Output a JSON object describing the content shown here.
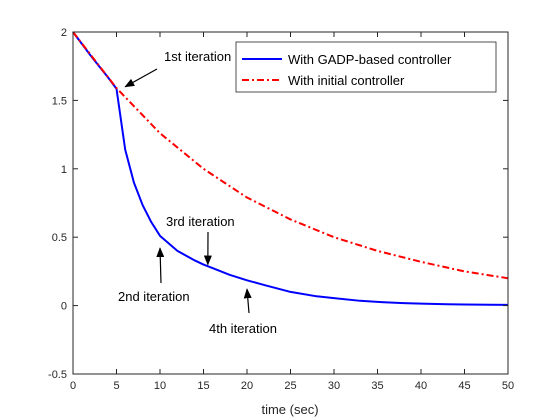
{
  "chart_data": {
    "type": "line",
    "title": "",
    "xlabel": "time (sec)",
    "ylabel": "",
    "xlim": [
      0,
      50
    ],
    "ylim": [
      -0.5,
      2
    ],
    "xticks": [
      0,
      5,
      10,
      15,
      20,
      25,
      30,
      35,
      40,
      45,
      50
    ],
    "yticks": [
      -0.5,
      0,
      0.5,
      1,
      1.5,
      2
    ],
    "ytick_labels": [
      "-0.5",
      "0",
      "0.5",
      "1",
      "1.5",
      "2"
    ],
    "grid": false,
    "legend_position": "top-right",
    "series": [
      {
        "name": "With GADP-based controller",
        "color": "#0000ff",
        "style": "solid",
        "x": [
          0,
          1,
          2,
          3,
          4,
          5,
          6,
          7,
          8,
          9,
          10,
          12,
          14,
          15,
          16,
          18,
          20,
          22,
          25,
          28,
          30,
          33,
          35,
          38,
          40,
          43,
          45,
          48,
          50
        ],
        "y": [
          2.0,
          1.915,
          1.83,
          1.75,
          1.67,
          1.585,
          1.14,
          0.9,
          0.735,
          0.61,
          0.51,
          0.4,
          0.33,
          0.3,
          0.275,
          0.225,
          0.185,
          0.15,
          0.1,
          0.068,
          0.055,
          0.035,
          0.027,
          0.018,
          0.014,
          0.01,
          0.008,
          0.006,
          0.005
        ]
      },
      {
        "name": "With initial controller",
        "color": "#ff0000",
        "style": "dashdot",
        "x": [
          0,
          5,
          10,
          15,
          20,
          25,
          30,
          35,
          40,
          45,
          50
        ],
        "y": [
          2.0,
          1.59,
          1.26,
          1.0,
          0.79,
          0.63,
          0.5,
          0.4,
          0.32,
          0.25,
          0.2
        ]
      }
    ],
    "annotations": [
      {
        "text": "1st iteration",
        "arrow_to": [
          6,
          1.6
        ]
      },
      {
        "text": "2nd iteration",
        "arrow_to": [
          10,
          0.42
        ]
      },
      {
        "text": "3rd iteration",
        "arrow_to": [
          15.5,
          0.3
        ]
      },
      {
        "text": "4th iteration",
        "arrow_to": [
          20,
          0.12
        ]
      }
    ]
  }
}
